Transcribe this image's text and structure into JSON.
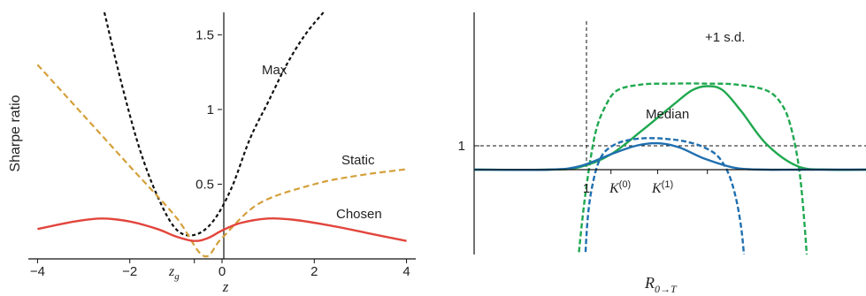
{
  "chart_data": [
    {
      "type": "line",
      "panel": "left",
      "ylabel": "Sharpe ratio",
      "xlabel": "z",
      "xlim": [
        -4.2,
        4.2
      ],
      "ylim": [
        0,
        1.65
      ],
      "x_ticks": [
        -4,
        -2,
        0,
        2,
        4
      ],
      "x_tick_labels": [
        "−4",
        "−2",
        "0",
        "2",
        "4"
      ],
      "y_ticks": [
        0.5,
        1,
        1.5
      ],
      "y_tick_labels": [
        "0.5",
        "1",
        "1.5"
      ],
      "zg": {
        "value": -0.6,
        "label": "z",
        "sub": "g"
      },
      "grid": false,
      "colors": {
        "Max": "#111111",
        "Static": "#d4a03a",
        "Chosen": "#e2453c"
      },
      "series": [
        {
          "name": "Max",
          "style": "dashed",
          "x": [
            -2.55,
            -2.2,
            -1.8,
            -1.4,
            -1.0,
            -0.6,
            -0.2,
            0.2,
            0.6,
            1.0,
            1.4,
            1.8,
            2.2
          ],
          "y": [
            1.65,
            1.2,
            0.75,
            0.42,
            0.2,
            0.16,
            0.25,
            0.47,
            0.8,
            1.05,
            1.3,
            1.5,
            1.65
          ]
        },
        {
          "name": "Static",
          "style": "dashed",
          "x": [
            -4,
            -3,
            -2,
            -1,
            -0.4,
            0,
            0.8,
            2,
            3,
            4
          ],
          "y": [
            1.3,
            0.96,
            0.62,
            0.28,
            0.02,
            0.14,
            0.37,
            0.5,
            0.56,
            0.6
          ]
        },
        {
          "name": "Chosen",
          "style": "solid",
          "x": [
            -4,
            -3.2,
            -2.6,
            -2,
            -1.4,
            -1,
            -0.6,
            -0.3,
            0,
            0.4,
            1,
            1.6,
            2.4,
            3.2,
            4
          ],
          "y": [
            0.2,
            0.25,
            0.27,
            0.25,
            0.2,
            0.15,
            0.12,
            0.14,
            0.19,
            0.24,
            0.27,
            0.26,
            0.22,
            0.17,
            0.12
          ]
        }
      ]
    },
    {
      "type": "line",
      "panel": "right",
      "xlabel": "R",
      "xlabel_sub": "0→T",
      "xlim": [
        -1.2,
        5.1
      ],
      "ylim": [
        -1.0,
        1.75
      ],
      "y_ticks": [
        1
      ],
      "y_tick_labels": [
        "1"
      ],
      "x_ticks": [
        1,
        1.75,
        2.55
      ],
      "x_tick_labels": [
        {
          "main": "1",
          "sup": ""
        },
        {
          "main": "K",
          "sup": "(0)"
        },
        {
          "main": "K",
          "sup": "(1)"
        }
      ],
      "reference_lines": {
        "horizontal": 1,
        "vertical": 1
      },
      "grid": false,
      "colors": {
        "Median": "#1f6fb0",
        "+1 s.d.": "#1fa84f"
      },
      "series": [
        {
          "name": "+1 s.d.",
          "style": "solid",
          "x": [
            -1.2,
            0,
            0.5,
            1,
            1.5,
            2,
            2.3,
            2.55,
            2.8,
            3.1,
            3.5,
            4,
            4.5,
            5.1
          ],
          "y": [
            0.72,
            0.72,
            0.75,
            0.9,
            1.18,
            1.48,
            1.65,
            1.7,
            1.65,
            1.4,
            1.02,
            0.76,
            0.72,
            0.72
          ]
        },
        {
          "name": "+1 s.d.",
          "style": "dashed",
          "x": [
            0.4,
            0.52,
            0.62,
            0.75,
            0.9,
            1.1,
            1.5,
            2,
            2.5,
            3,
            3.5,
            3.75,
            3.9,
            4.03,
            4.12,
            4.2
          ],
          "y": [
            -0.9,
            0.0,
            0.6,
            1.15,
            1.45,
            1.65,
            1.72,
            1.73,
            1.73,
            1.72,
            1.65,
            1.48,
            1.2,
            0.7,
            0.0,
            -0.9
          ]
        },
        {
          "name": "Median",
          "style": "solid",
          "x": [
            -1.2,
            0,
            0.5,
            1,
            1.4,
            1.75,
            2.1,
            2.5,
            3,
            3.5,
            4,
            5.1
          ],
          "y": [
            0.72,
            0.72,
            0.76,
            0.9,
            1.0,
            1.03,
            0.98,
            0.85,
            0.74,
            0.72,
            0.72,
            0.72
          ]
        },
        {
          "name": "Median",
          "style": "dashed",
          "x": [
            0.55,
            0.62,
            0.72,
            0.85,
            1.05,
            1.3,
            1.6,
            1.9,
            2.2,
            2.5,
            2.75,
            2.95,
            3.1,
            3.2
          ],
          "y": [
            -0.9,
            0.1,
            0.6,
            0.88,
            1.01,
            1.07,
            1.09,
            1.08,
            1.05,
            0.98,
            0.85,
            0.55,
            0.0,
            -0.9
          ]
        }
      ],
      "annotations": [
        "Median",
        "+1 s.d."
      ]
    }
  ]
}
